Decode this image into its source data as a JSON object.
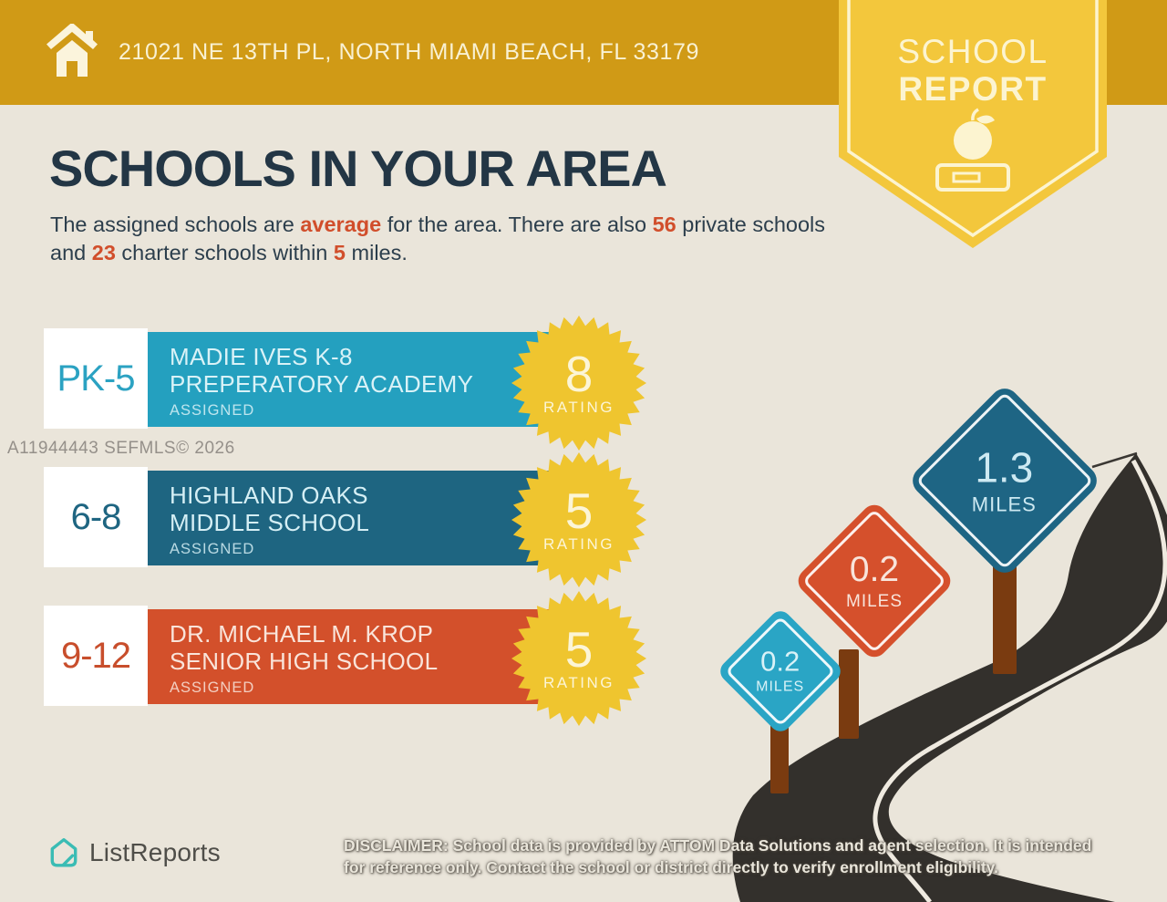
{
  "header": {
    "address": "21021 NE 13TH PL, NORTH MIAMI BEACH, FL 33179"
  },
  "banner": {
    "line1": "SCHOOL",
    "line2": "REPORT"
  },
  "title": "SCHOOLS IN YOUR AREA",
  "intro": {
    "t1": "The assigned schools are ",
    "hl1": "average",
    "t2": " for the area. There are also ",
    "hl2": "56",
    "t3": " private schools and ",
    "hl3": "23",
    "t4": " charter schools within ",
    "hl4": "5",
    "t5": " miles."
  },
  "watermark": "A11944443  SEFMLS© 2026",
  "schools": [
    {
      "grades": "PK-5",
      "name_line1": "MADIE IVES K-8",
      "name_line2": "PREPERATORY ACADEMY",
      "status": "ASSIGNED",
      "rating": "8",
      "rating_label": "RATING",
      "bar_color": "#24A0BF"
    },
    {
      "grades": "6-8",
      "name_line1": "HIGHLAND OAKS",
      "name_line2": "MIDDLE SCHOOL",
      "status": "ASSIGNED",
      "rating": "5",
      "rating_label": "RATING",
      "bar_color": "#1E6581"
    },
    {
      "grades": "9-12",
      "name_line1": "DR. MICHAEL M. KROP",
      "name_line2": "SENIOR HIGH SCHOOL",
      "status": "ASSIGNED",
      "rating": "5",
      "rating_label": "RATING",
      "bar_color": "#D3502B"
    }
  ],
  "distance_signs": [
    {
      "value": "0.2",
      "unit": "MILES",
      "color": "#2AA5C5"
    },
    {
      "value": "0.2",
      "unit": "MILES",
      "color": "#D5502C"
    },
    {
      "value": "1.3",
      "unit": "MILES",
      "color": "#1E6584"
    }
  ],
  "footer": {
    "logo_text": "ListReports",
    "disclaimer_label": "DISCLAIMER:",
    "disclaimer_rest_line1": " School data is provided by ATTOM Data Solutions and agent selection. It is intended",
    "disclaimer_line2": "for reference only. Contact the school or district directly to verify enrollment eligibility."
  },
  "colors": {
    "header_gold": "#D09A16",
    "pennant_yellow": "#F3C73C",
    "background": "#EAE5DA",
    "title_navy": "#233645",
    "highlight_red": "#D14E2B",
    "badge_yellow": "#EFC52F",
    "badge_text_cream": "#FCF5D6",
    "road_charcoal": "#33302C",
    "post_brown": "#7A3B10",
    "logo_teal": "#3ABCB4"
  }
}
